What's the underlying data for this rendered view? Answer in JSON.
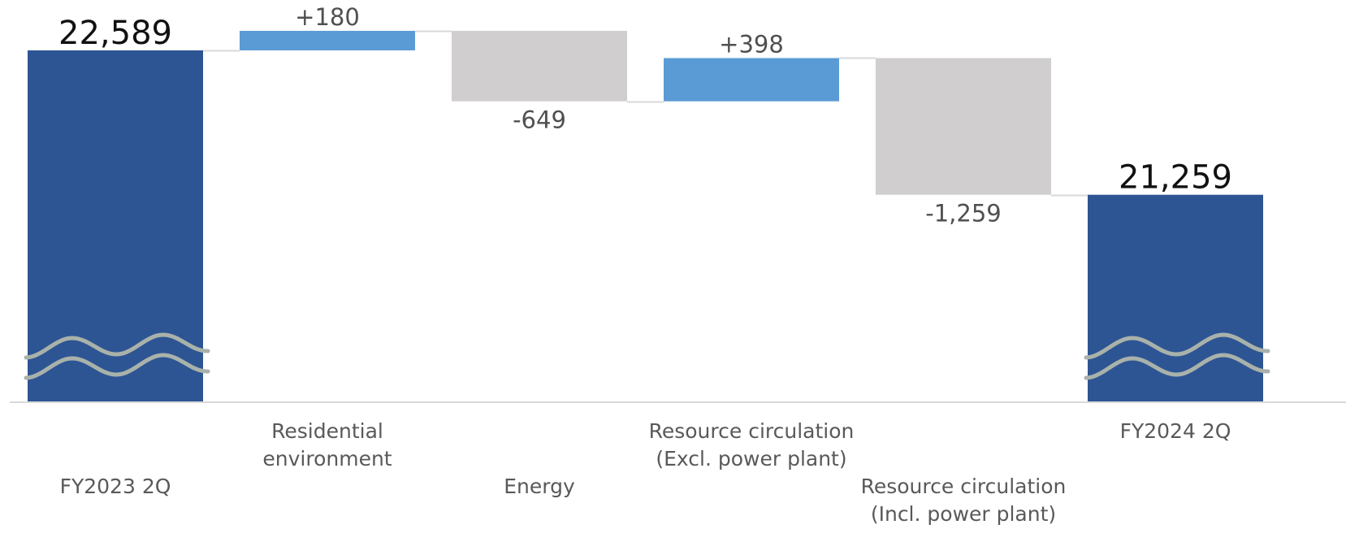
{
  "chart_data": {
    "type": "waterfall",
    "title": "",
    "xlabel": "",
    "ylabel": "",
    "ylim": [
      20800,
      22800
    ],
    "axis_break": true,
    "grid": false,
    "legend": "none",
    "categories": [
      {
        "label_lines": [
          "FY2023 2Q"
        ],
        "label_row": 3
      },
      {
        "label_lines": [
          "Residential",
          "environment"
        ],
        "label_row": 1
      },
      {
        "label_lines": [
          "Energy"
        ],
        "label_row": 3
      },
      {
        "label_lines": [
          "Resource circulation",
          "(Excl. power plant)"
        ],
        "label_row": 1
      },
      {
        "label_lines": [
          "Resource circulation",
          "(Incl. power plant)"
        ],
        "label_row": 3
      },
      {
        "label_lines": [
          "FY2024 2Q"
        ],
        "label_row": 1
      }
    ],
    "bars": [
      {
        "kind": "total",
        "value": 22589,
        "label": "22,589"
      },
      {
        "kind": "increase",
        "value": 180,
        "label": "+180"
      },
      {
        "kind": "decrease",
        "value": -649,
        "label": "-649"
      },
      {
        "kind": "increase",
        "value": 398,
        "label": "+398"
      },
      {
        "kind": "decrease",
        "value": -1259,
        "label": "-1,259"
      },
      {
        "kind": "total",
        "value": 21259,
        "label": "21,259"
      }
    ],
    "colors": {
      "total": "#2e5593",
      "increase": "#5b9bd5",
      "decrease": "#d0cece",
      "connector": "#d9d9d9",
      "axis": "#d9d9d9",
      "break_wave": "#a9b2aa"
    }
  }
}
